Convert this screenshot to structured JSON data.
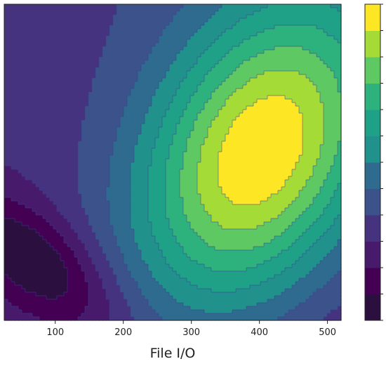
{
  "chart_data": {
    "type": "heatmap",
    "subtype": "filled-contour",
    "title": "",
    "xlabel": "File I/O",
    "ylabel": "",
    "xlim": [
      25,
      520
    ],
    "x_ticks": [
      100,
      200,
      300,
      400,
      500
    ],
    "colormap": "viridis",
    "colorbar": {
      "position": "right",
      "levels": 12,
      "tick_labels": []
    },
    "grid": false,
    "peak": {
      "x": 400,
      "level": 11
    },
    "trough": {
      "x": 70,
      "level": 0
    },
    "level_colors": [
      "#2a0f3f",
      "#440154",
      "#481a6c",
      "#45337f",
      "#3b528b",
      "#2f6b8e",
      "#21918c",
      "#1fa187",
      "#2db27d",
      "#5ec962",
      "#a5db36",
      "#fde725"
    ],
    "contour_line_color": "#3b3f8f",
    "frame_color": "#222222"
  }
}
